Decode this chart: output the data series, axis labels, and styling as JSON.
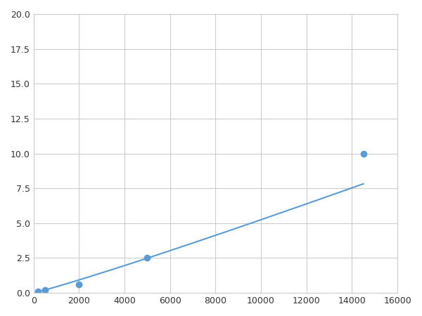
{
  "x": [
    200,
    500,
    2000,
    5000,
    14500
  ],
  "y": [
    0.1,
    0.2,
    0.6,
    2.5,
    10.0
  ],
  "xlim": [
    0,
    16000
  ],
  "ylim": [
    0,
    20.0
  ],
  "xticks": [
    0,
    2000,
    4000,
    6000,
    8000,
    10000,
    12000,
    14000,
    16000
  ],
  "yticks": [
    0.0,
    2.5,
    5.0,
    7.5,
    10.0,
    12.5,
    15.0,
    17.5,
    20.0
  ],
  "line_color": "#5b9bd5",
  "marker_color": "#5b9bd5",
  "background_color": "#ffffff",
  "grid_color": "#cccccc",
  "marker_size": 6,
  "line_width": 1.5
}
